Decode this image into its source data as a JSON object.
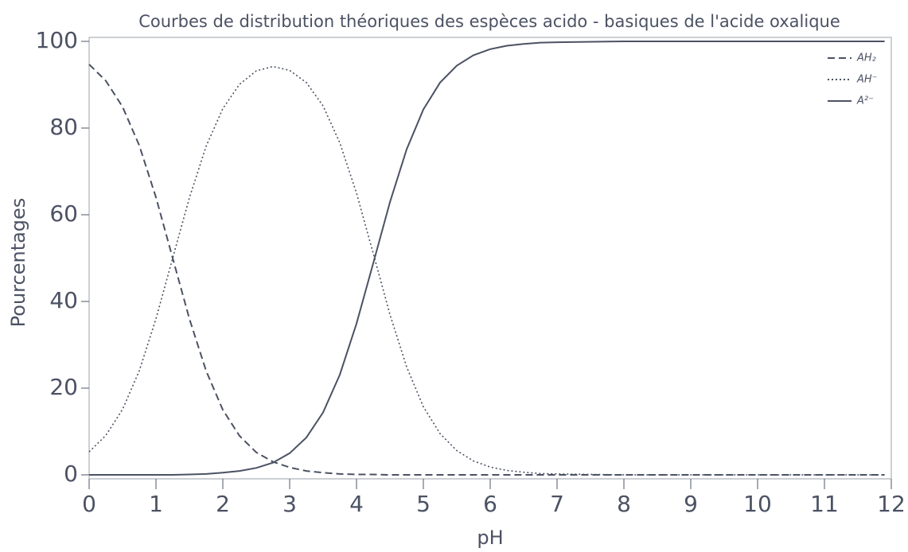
{
  "chart_data": {
    "type": "line",
    "title": "Courbes de distribution théoriques des espèces acido - basiques de l'acide oxalique",
    "xlabel": "pH",
    "ylabel": "Pourcentages",
    "x": [
      0,
      0.25,
      0.5,
      0.75,
      1,
      1.25,
      1.5,
      1.75,
      2,
      2.25,
      2.5,
      2.75,
      3,
      3.25,
      3.5,
      3.75,
      4,
      4.25,
      4.5,
      4.75,
      5,
      5.25,
      5.5,
      5.75,
      6,
      6.25,
      6.5,
      6.75,
      7,
      8,
      9,
      10,
      11,
      11.9
    ],
    "series": [
      {
        "name": "AH₂",
        "color": "#4b5263",
        "dash": "dashed",
        "values": [
          94.7,
          90.9,
          84.9,
          76.0,
          64.0,
          50.0,
          36.0,
          24.0,
          15.0,
          9.0,
          5.2,
          3.0,
          1.7,
          0.9,
          0.5,
          0.2,
          0.1,
          0.1,
          0,
          0,
          0,
          0,
          0,
          0,
          0,
          0,
          0,
          0,
          0,
          0,
          0,
          0,
          0,
          0
        ]
      },
      {
        "name": "AH⁻",
        "color": "#4b5263",
        "dash": "dotted",
        "values": [
          5.3,
          9.1,
          15.1,
          24.0,
          36.0,
          50.0,
          63.9,
          75.8,
          84.5,
          90.1,
          93.2,
          94.2,
          93.3,
          90.5,
          85.1,
          76.6,
          65.0,
          51.1,
          37.0,
          24.9,
          15.7,
          9.5,
          5.6,
          3.2,
          1.8,
          1.0,
          0.6,
          0.3,
          0.2,
          0,
          0,
          0,
          0,
          0
        ]
      },
      {
        "name": "A²⁻",
        "color": "#4b5263",
        "dash": "solid",
        "values": [
          0,
          0,
          0,
          0,
          0,
          0,
          0.1,
          0.2,
          0.5,
          0.9,
          1.6,
          2.8,
          5.0,
          8.6,
          14.4,
          23.1,
          34.9,
          48.8,
          62.9,
          75.1,
          84.3,
          90.5,
          94.4,
          96.8,
          98.2,
          99.0,
          99.4,
          99.7,
          99.8,
          100,
          100,
          100,
          100,
          100
        ]
      }
    ],
    "xlim": [
      0,
      12
    ],
    "xticks": [
      0,
      1,
      2,
      3,
      4,
      5,
      6,
      7,
      8,
      9,
      10,
      11,
      12
    ],
    "ylim": [
      0,
      100
    ],
    "yticks": [
      0,
      20,
      40,
      60,
      80,
      100
    ],
    "grid": false,
    "legend": "upper right"
  }
}
